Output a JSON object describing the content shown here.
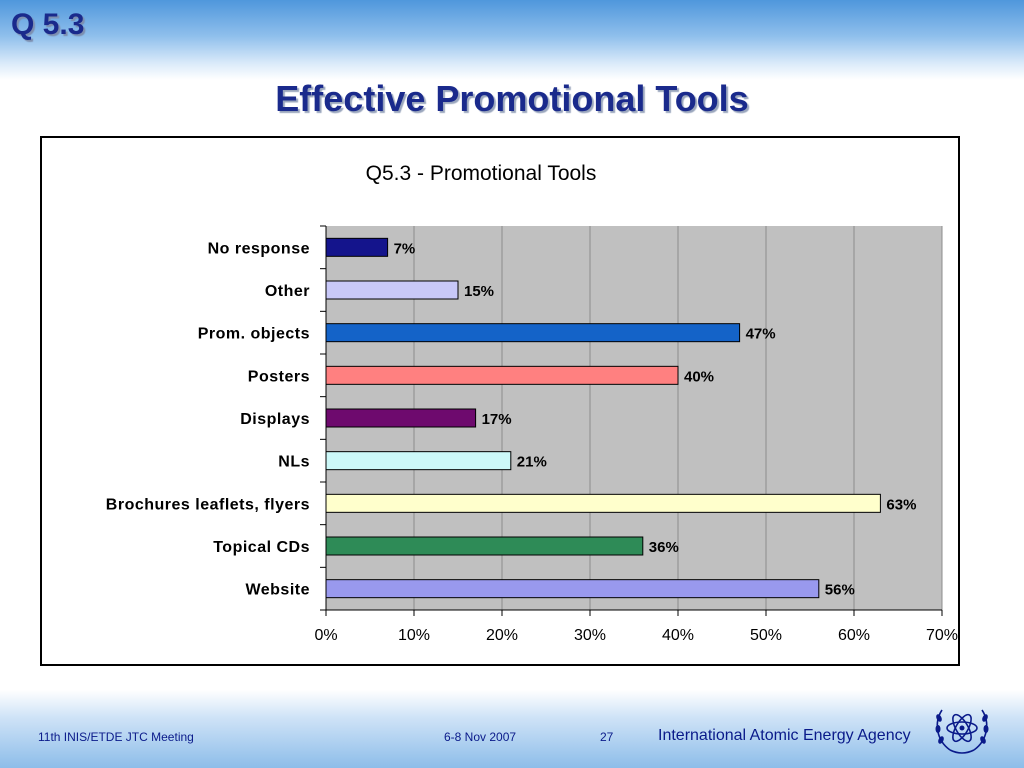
{
  "header": {
    "slide_number_title": "Q 5.3",
    "title": "Effective Promotional Tools"
  },
  "chart_data": {
    "type": "bar",
    "orientation": "horizontal",
    "title": "Q5.3 - Promotional Tools",
    "categories": [
      "No response",
      "Other",
      "Prom. objects",
      "Posters",
      "Displays",
      "NLs",
      "Brochures leaflets, flyers",
      "Topical CDs",
      "Website"
    ],
    "values": [
      7,
      15,
      47,
      40,
      17,
      21,
      63,
      36,
      56
    ],
    "value_labels": [
      "7%",
      "15%",
      "47%",
      "40%",
      "17%",
      "21%",
      "63%",
      "36%",
      "56%"
    ],
    "bar_colors": [
      "#14148c",
      "#c8c8f8",
      "#1463c8",
      "#ff8080",
      "#6e0a6e",
      "#ccf8f8",
      "#ffffcc",
      "#2e8b57",
      "#9999ee"
    ],
    "xlim": [
      0,
      70
    ],
    "x_ticks": [
      "0%",
      "10%",
      "20%",
      "30%",
      "40%",
      "50%",
      "60%",
      "70%"
    ],
    "plot_background": "#c0c0c0",
    "grid": true,
    "legend": "none",
    "xlabel": "",
    "ylabel": ""
  },
  "footer": {
    "meeting": "11th INIS/ETDE JTC Meeting",
    "date": "6-8 Nov 2007",
    "page": "27",
    "agency": "International Atomic Energy Agency",
    "logo_icon": "iaea-atom-olive-wreath-icon"
  }
}
